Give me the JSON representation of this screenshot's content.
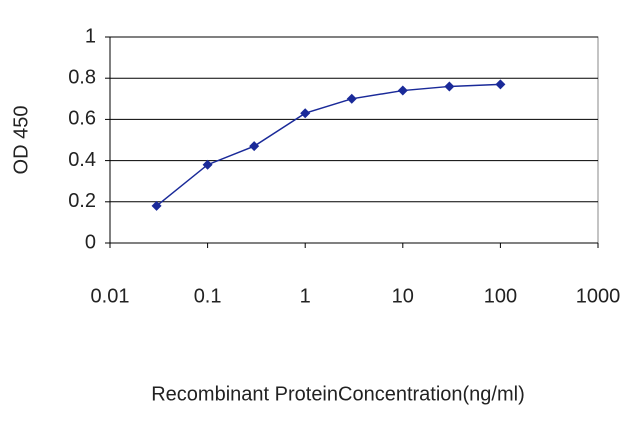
{
  "chart_data": {
    "type": "line",
    "x_label": "Recombinant ProteinConcentration(ng/ml)",
    "y_label": "OD 450",
    "x": [
      0.03,
      0.1,
      0.3,
      1,
      3,
      10,
      30,
      100
    ],
    "values": [
      0.18,
      0.38,
      0.47,
      0.63,
      0.7,
      0.74,
      0.76,
      0.77
    ],
    "color": "#1a2a99",
    "xlog": true,
    "xlim": [
      0.01,
      1000
    ],
    "xticks": [
      0.01,
      0.1,
      1,
      10,
      100,
      1000
    ],
    "ylim": [
      0,
      1
    ],
    "yticks": [
      0,
      0.2,
      0.4,
      0.6,
      0.8,
      1
    ],
    "grid": true
  }
}
